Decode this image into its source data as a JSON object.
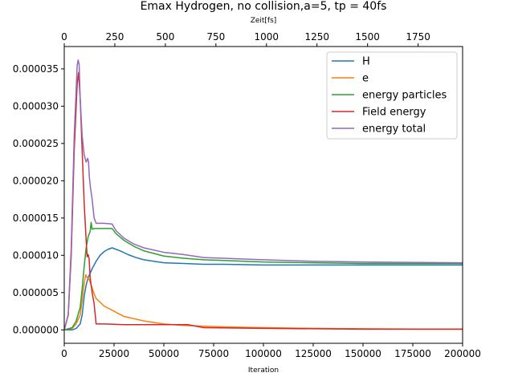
{
  "chart_data": {
    "type": "line",
    "title": "Emax Hydrogen, no collision,a=5, tp = 40fs",
    "xlabel": "Iteration",
    "x2label": "Zeit[fs]",
    "ylabel": "",
    "xlim": [
      0,
      200000
    ],
    "ylim": [
      -1.8e-06,
      3.8e-05
    ],
    "x2lim": [
      0,
      1970
    ],
    "legend_position": "top-right",
    "x_ticks": [
      0,
      25000,
      50000,
      75000,
      100000,
      125000,
      150000,
      175000,
      200000
    ],
    "x_tick_labels": [
      "0",
      "25000",
      "50000",
      "75000",
      "100000",
      "125000",
      "150000",
      "175000",
      "200000"
    ],
    "x2_ticks": [
      0,
      250,
      500,
      750,
      1000,
      1250,
      1500,
      1750
    ],
    "x2_tick_labels": [
      "0",
      "250",
      "500",
      "750",
      "1000",
      "1250",
      "1500",
      "1750"
    ],
    "y_ticks": [
      0,
      5e-06,
      1e-05,
      1.5e-05,
      2e-05,
      2.5e-05,
      3e-05,
      3.5e-05
    ],
    "y_tick_labels": [
      "0.000000",
      "0.000005",
      "0.000010",
      "0.000015",
      "0.000020",
      "0.000025",
      "0.000030",
      "0.000035"
    ],
    "series": [
      {
        "name": "H",
        "color": "#1f77b4",
        "x": [
          0,
          4000,
          6000,
          8000,
          9000,
          10000,
          11000,
          12000,
          14000,
          16000,
          18000,
          20000,
          22000,
          24000,
          28000,
          32000,
          36000,
          40000,
          45000,
          50000,
          60000,
          70000,
          80000,
          100000,
          150000,
          200000
        ],
        "y": [
          0,
          0,
          2e-07,
          8e-07,
          2e-06,
          4.5e-06,
          6e-06,
          7e-06,
          8.2e-06,
          9.2e-06,
          1e-05,
          1.05e-05,
          1.08e-05,
          1.1e-05,
          1.06e-05,
          1.01e-05,
          9.7e-06,
          9.4e-06,
          9.2e-06,
          9e-06,
          8.9e-06,
          8.8e-06,
          8.8e-06,
          8.7e-06,
          8.7e-06,
          8.7e-06
        ]
      },
      {
        "name": "e",
        "color": "#ff7f0e",
        "x": [
          0,
          4000,
          6000,
          8000,
          9000,
          10000,
          10800,
          11500,
          12500,
          13500,
          14500,
          16000,
          20000,
          25000,
          30000,
          40000,
          50000,
          60000,
          70000,
          80000,
          100000,
          125000,
          150000,
          175000,
          200000
        ],
        "y": [
          0,
          2e-07,
          8e-07,
          2e-06,
          4e-06,
          6.2e-06,
          7.4e-06,
          7e-06,
          6.8e-06,
          6e-06,
          5.2e-06,
          4.2e-06,
          3.2e-06,
          2.5e-06,
          1.8e-06,
          1.2e-06,
          8e-07,
          6e-07,
          5e-07,
          4e-07,
          3e-07,
          2e-07,
          1.5e-07,
          1e-07,
          1e-07
        ]
      },
      {
        "name": "energy particles",
        "color": "#2ca02c",
        "x": [
          0,
          4000,
          6000,
          8000,
          9000,
          10000,
          11000,
          12000,
          13000,
          13500,
          14000,
          15000,
          20000,
          24000,
          26000,
          30000,
          35000,
          40000,
          50000,
          60000,
          70000,
          80000,
          100000,
          125000,
          150000,
          200000
        ],
        "y": [
          0,
          3e-07,
          1.2e-06,
          3e-06,
          5.5e-06,
          8.5e-06,
          1.1e-05,
          1.25e-05,
          1.32e-05,
          1.44e-05,
          1.35e-05,
          1.36e-05,
          1.36e-05,
          1.36e-05,
          1.29e-05,
          1.2e-05,
          1.12e-05,
          1.06e-05,
          9.9e-06,
          9.6e-06,
          9.4e-06,
          9.3e-06,
          9.1e-06,
          9e-06,
          8.9e-06,
          8.9e-06
        ]
      },
      {
        "name": "Field energy",
        "color": "#d62728",
        "x": [
          0,
          2000,
          3500,
          5000,
          6500,
          7200,
          8000,
          9000,
          10000,
          11000,
          11500,
          12000,
          12500,
          13000,
          14000,
          15000,
          16000,
          20000,
          30000,
          50000,
          62000,
          70000,
          100000,
          150000,
          200000
        ],
        "y": [
          0,
          2e-06,
          1e-05,
          2.4e-05,
          3.3e-05,
          3.45e-05,
          3.1e-05,
          2.4e-05,
          1.7e-05,
          1.2e-05,
          9.8e-06,
          1.01e-05,
          9.5e-06,
          7e-06,
          5e-06,
          3.5e-06,
          8e-07,
          8e-07,
          7e-07,
          7e-07,
          7e-07,
          3e-07,
          2e-07,
          1e-07,
          1e-07
        ]
      },
      {
        "name": "energy total",
        "color": "#9467bd",
        "x": [
          0,
          2000,
          3500,
          5000,
          6500,
          7000,
          7500,
          8000,
          9000,
          10000,
          11000,
          11800,
          12200,
          12600,
          13200,
          14000,
          15000,
          16000,
          20000,
          24000,
          26000,
          30000,
          35000,
          40000,
          50000,
          60000,
          70000,
          80000,
          100000,
          125000,
          150000,
          200000
        ],
        "y": [
          0,
          2e-06,
          1.1e-05,
          2.6e-05,
          3.55e-05,
          3.62e-05,
          3.55e-05,
          3.1e-05,
          2.6e-05,
          2.35e-05,
          2.25e-05,
          2.3e-05,
          2.25e-05,
          2.05e-05,
          1.9e-05,
          1.75e-05,
          1.5e-05,
          1.43e-05,
          1.43e-05,
          1.42e-05,
          1.33e-05,
          1.23e-05,
          1.15e-05,
          1.1e-05,
          1.04e-05,
          1.01e-05,
          9.7e-06,
          9.6e-06,
          9.4e-06,
          9.2e-06,
          9.1e-06,
          9e-06
        ]
      }
    ]
  }
}
